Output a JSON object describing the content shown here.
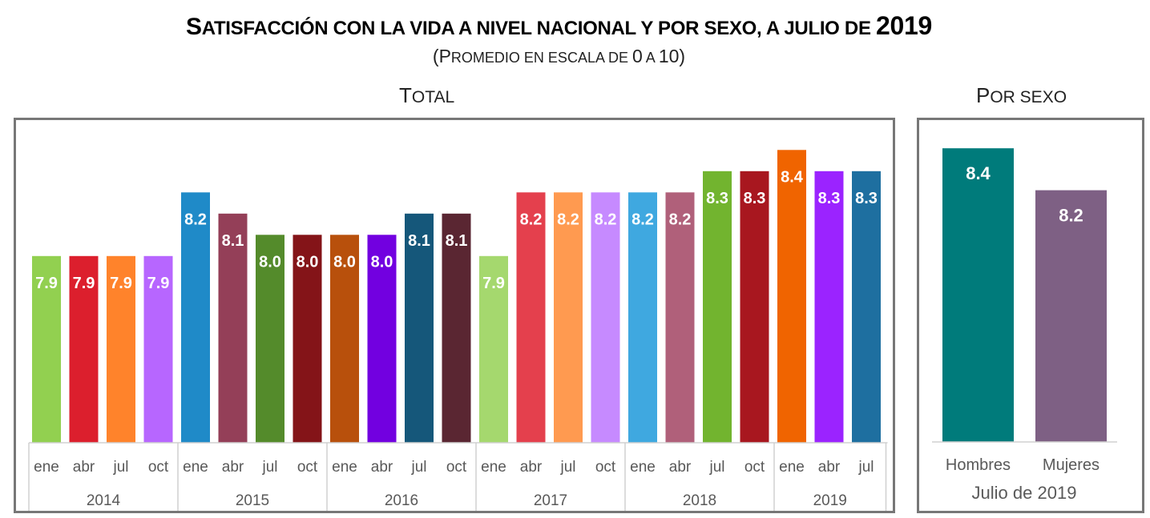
{
  "title": {
    "first": "S",
    "rest": "ATISFACCIÓN CON LA VIDA A NIVEL NACIONAL Y POR SEXO, A JULIO DE ",
    "year": "2019"
  },
  "subtitle": {
    "open": "(P",
    "rest": "ROMEDIO EN ESCALA DE ",
    "zero": "0",
    "a": " A ",
    "ten": "10)"
  },
  "panels": {
    "total": {
      "first": "T",
      "rest": "OTAL"
    },
    "sex": {
      "first": "P",
      "rest": "OR SEXO"
    }
  },
  "chart_data": [
    {
      "type": "bar",
      "title": "Total",
      "xlabel": "",
      "ylabel": "",
      "ylim": [
        7.02,
        8.5
      ],
      "grid": false,
      "years": [
        {
          "label": "2014",
          "count": 4
        },
        {
          "label": "2015",
          "count": 4
        },
        {
          "label": "2016",
          "count": 4
        },
        {
          "label": "2017",
          "count": 4
        },
        {
          "label": "2018",
          "count": 4
        },
        {
          "label": "2019",
          "count": 3
        }
      ],
      "categories": [
        "ene",
        "abr",
        "jul",
        "oct",
        "ene",
        "abr",
        "jul",
        "oct",
        "ene",
        "abr",
        "jul",
        "oct",
        "ene",
        "abr",
        "jul",
        "oct",
        "ene",
        "abr",
        "jul",
        "oct",
        "ene",
        "abr",
        "jul"
      ],
      "values": [
        7.9,
        7.9,
        7.9,
        7.9,
        8.2,
        8.1,
        8.0,
        8.0,
        8.0,
        8.0,
        8.1,
        8.1,
        7.9,
        8.2,
        8.2,
        8.2,
        8.2,
        8.2,
        8.3,
        8.3,
        8.4,
        8.3,
        8.3
      ],
      "labels": [
        "7.9",
        "7.9",
        "7.9",
        "7.9",
        "8.2",
        "8.1",
        "8.0",
        "8.0",
        "8.0",
        "8.0",
        "8.1",
        "8.1",
        "7.9",
        "8.2",
        "8.2",
        "8.2",
        "8.2",
        "8.2",
        "8.3",
        "8.3",
        "8.4",
        "8.3",
        "8.3"
      ],
      "colors": [
        "#92d050",
        "#dc1f2d",
        "#ff832b",
        "#b766ff",
        "#1f8ac8",
        "#943f58",
        "#548b2b",
        "#841418",
        "#b8500c",
        "#7200e0",
        "#15577a",
        "#5a2632",
        "#a5d86e",
        "#e4404d",
        "#ff9a50",
        "#c68aff",
        "#3fa8e0",
        "#b0607a",
        "#72b42f",
        "#a8171f",
        "#f06400",
        "#9b23ff",
        "#1e6fa0"
      ]
    },
    {
      "type": "bar",
      "title": "Por sexo",
      "xlabel": "Julio de 2019",
      "ylabel": "",
      "ylim": [
        7.0,
        8.5
      ],
      "grid": false,
      "categories": [
        "Hombres",
        "Mujeres"
      ],
      "values": [
        8.4,
        8.2
      ],
      "labels": [
        "8.4",
        "8.2"
      ],
      "colors": [
        "#007b7b",
        "#7e6084"
      ]
    }
  ]
}
